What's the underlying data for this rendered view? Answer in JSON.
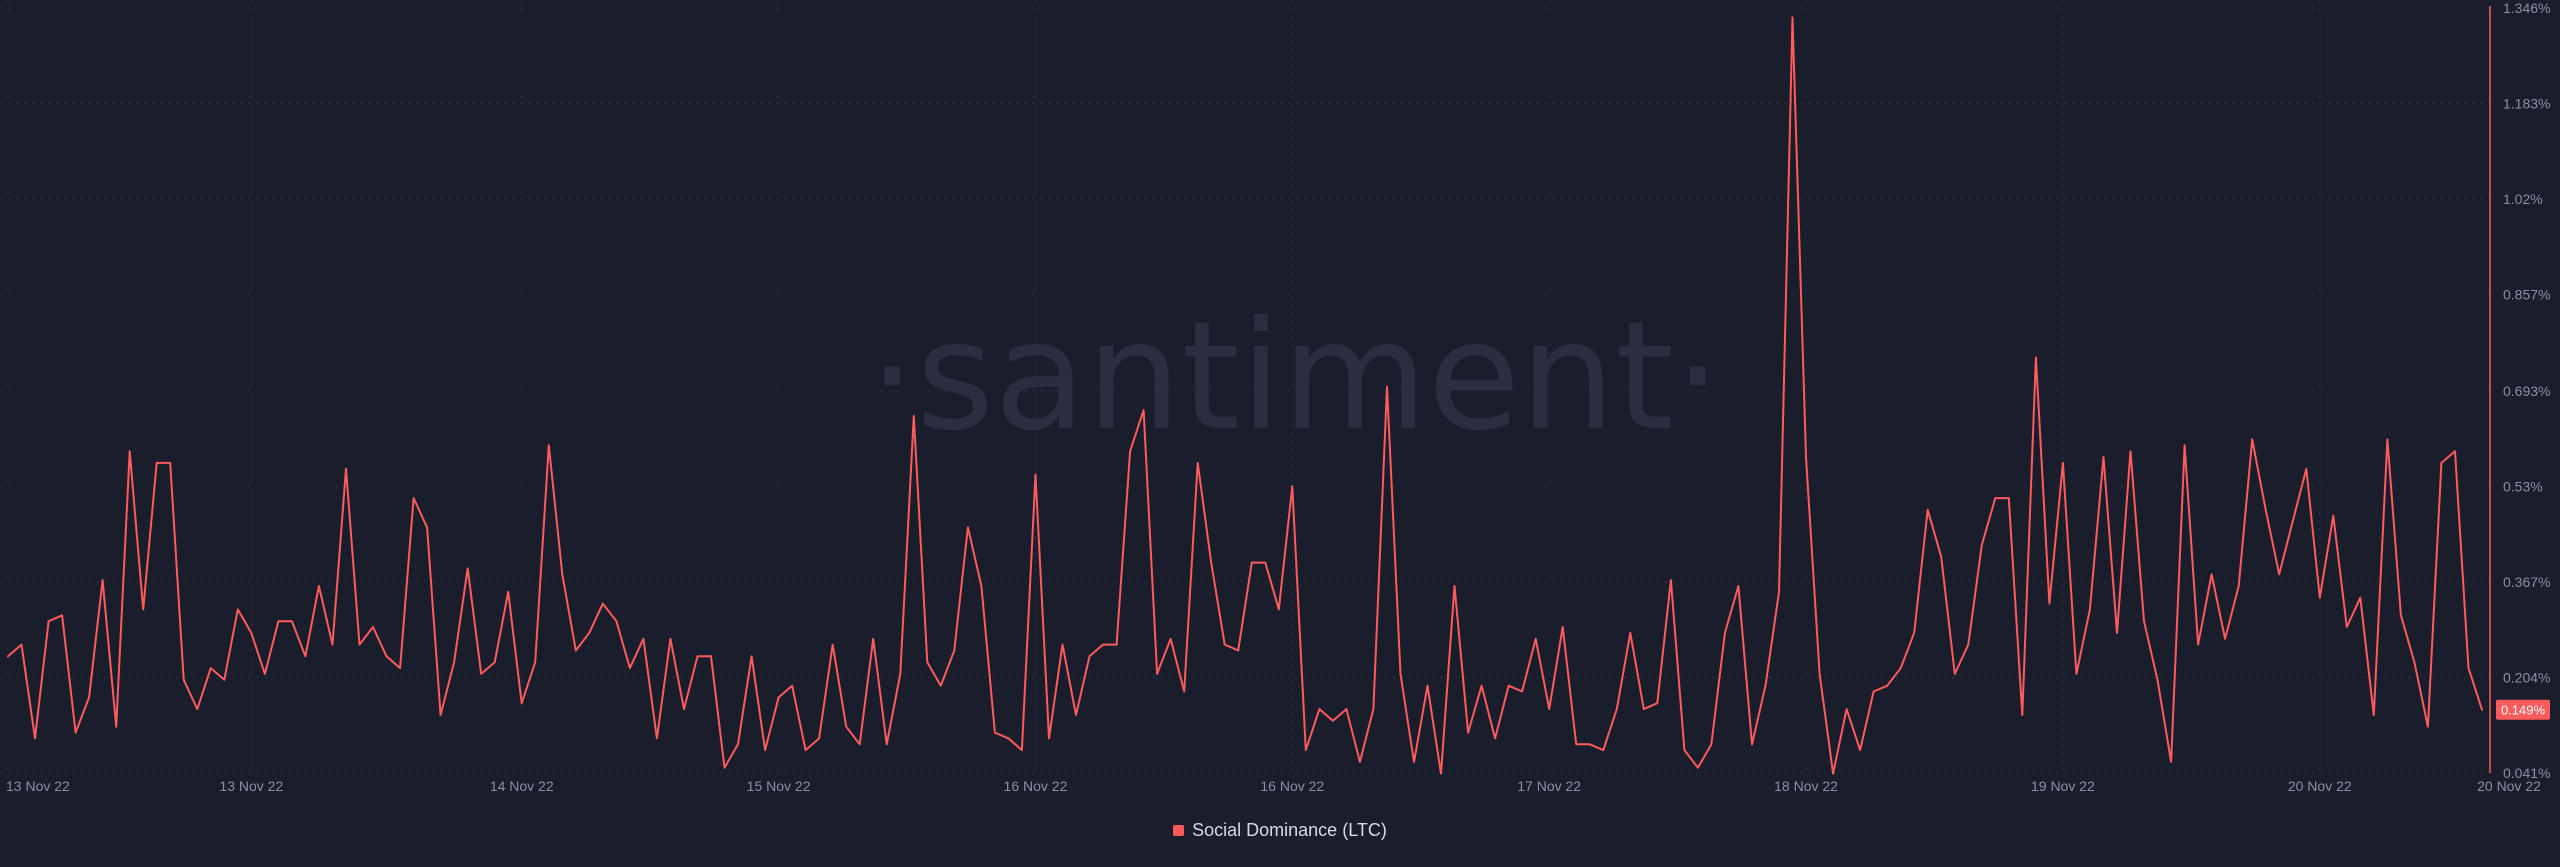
{
  "watermark": "·santiment·",
  "colors": {
    "background": "#1a1d2c",
    "line": "#ff5b5b",
    "grid": "#2b2f42",
    "badge": "#ff5b5b"
  },
  "chart_data": {
    "type": "line",
    "title": "",
    "xlabel": "",
    "ylabel": "",
    "grid": true,
    "legend_position": "bottom-center",
    "y_axis_side": "right",
    "ylim": [
      0.041,
      1.346
    ],
    "y_ticks": [
      "1.346%",
      "1.183%",
      "1.02%",
      "0.857%",
      "0.693%",
      "0.53%",
      "0.367%",
      "0.204%",
      "0.041%"
    ],
    "y_tick_values": [
      1.346,
      1.183,
      1.02,
      0.857,
      0.693,
      0.53,
      0.367,
      0.204,
      0.041
    ],
    "x_ticks": [
      "13 Nov 22",
      "13 Nov 22",
      "14 Nov 22",
      "15 Nov 22",
      "16 Nov 22",
      "16 Nov 22",
      "17 Nov 22",
      "18 Nov 22",
      "19 Nov 22",
      "20 Nov 22",
      "20 Nov 22"
    ],
    "x_tick_index": [
      0,
      18,
      38,
      57,
      76,
      95,
      114,
      133,
      152,
      171,
      185
    ],
    "last_value_label": "0.149%",
    "series": [
      {
        "name": "Social Dominance (LTC)",
        "values": [
          0.24,
          0.26,
          0.1,
          0.3,
          0.31,
          0.11,
          0.17,
          0.37,
          0.12,
          0.59,
          0.32,
          0.57,
          0.57,
          0.2,
          0.15,
          0.22,
          0.2,
          0.32,
          0.28,
          0.21,
          0.3,
          0.3,
          0.24,
          0.36,
          0.26,
          0.56,
          0.26,
          0.29,
          0.24,
          0.22,
          0.51,
          0.46,
          0.14,
          0.23,
          0.39,
          0.21,
          0.23,
          0.35,
          0.16,
          0.23,
          0.6,
          0.38,
          0.25,
          0.28,
          0.33,
          0.3,
          0.22,
          0.27,
          0.1,
          0.27,
          0.15,
          0.24,
          0.24,
          0.05,
          0.09,
          0.24,
          0.08,
          0.17,
          0.19,
          0.08,
          0.1,
          0.26,
          0.12,
          0.09,
          0.27,
          0.09,
          0.21,
          0.65,
          0.23,
          0.19,
          0.25,
          0.46,
          0.36,
          0.11,
          0.1,
          0.08,
          0.55,
          0.1,
          0.26,
          0.14,
          0.24,
          0.26,
          0.26,
          0.59,
          0.66,
          0.21,
          0.27,
          0.18,
          0.57,
          0.4,
          0.26,
          0.25,
          0.4,
          0.4,
          0.32,
          0.53,
          0.08,
          0.15,
          0.13,
          0.15,
          0.06,
          0.15,
          0.7,
          0.21,
          0.06,
          0.19,
          0.04,
          0.36,
          0.11,
          0.19,
          0.1,
          0.19,
          0.18,
          0.27,
          0.15,
          0.29,
          0.09,
          0.09,
          0.08,
          0.15,
          0.28,
          0.15,
          0.16,
          0.37,
          0.08,
          0.05,
          0.09,
          0.28,
          0.36,
          0.09,
          0.19,
          0.35,
          1.33,
          0.58,
          0.21,
          0.04,
          0.15,
          0.08,
          0.18,
          0.19,
          0.22,
          0.28,
          0.49,
          0.41,
          0.21,
          0.26,
          0.43,
          0.51,
          0.51,
          0.14,
          0.75,
          0.33,
          0.57,
          0.21,
          0.32,
          0.58,
          0.28,
          0.59,
          0.3,
          0.2,
          0.06,
          0.6,
          0.26,
          0.38,
          0.27,
          0.36,
          0.61,
          0.49,
          0.38,
          0.47,
          0.56,
          0.34,
          0.48,
          0.29,
          0.34,
          0.14,
          0.61,
          0.31,
          0.23,
          0.12,
          0.57,
          0.59,
          0.22,
          0.149
        ]
      }
    ]
  }
}
